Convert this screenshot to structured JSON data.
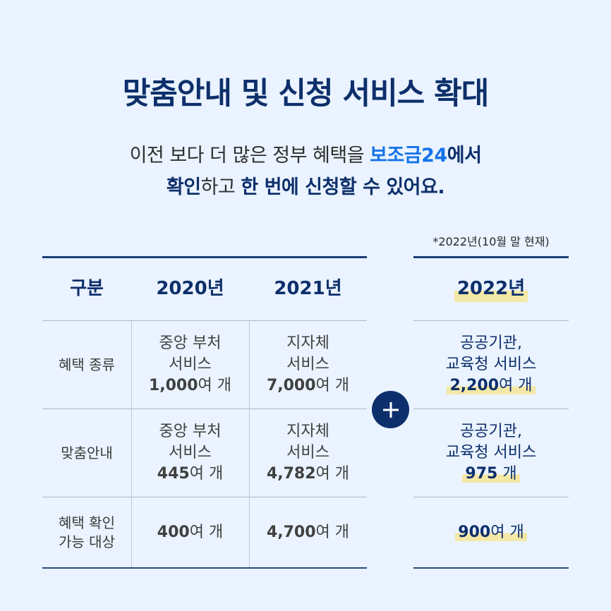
{
  "title": "맞춤안내 및 신청 서비스 확대",
  "subtitle": {
    "line1_pre": "이전 보다 더 많은 정부 혜택을 ",
    "line1_highlight": "보조금24",
    "line1_post": "에서",
    "line2_bold1": "확인",
    "line2_mid": "하고 ",
    "line2_bold2": "한 번에 신청할 수 있어요."
  },
  "note": "*2022년(10월 말 현재)",
  "table": {
    "headers": {
      "category": "구분",
      "y2020": "2020년",
      "y2021": "2021년",
      "y2022": "2022년"
    },
    "rows": [
      {
        "label": "혜택 종류",
        "y2020": [
          "중앙 부처",
          "서비스",
          "1,000",
          "여 개"
        ],
        "y2021": [
          "지자체",
          "서비스",
          "7,000",
          "여 개"
        ],
        "y2022": [
          "공공기관,",
          "교육청 서비스",
          "2,200",
          "여 개"
        ]
      },
      {
        "label": "맞춤안내",
        "y2020": [
          "중앙 부처",
          "서비스",
          "445",
          "여 개"
        ],
        "y2021": [
          "지자체",
          "서비스",
          "4,782",
          "여 개"
        ],
        "y2022": [
          "공공기관,",
          "교육청 서비스",
          "975",
          " 개"
        ]
      },
      {
        "label1": "혜택 확인",
        "label2": "가능 대상",
        "y2020": [
          "400",
          "여 개"
        ],
        "y2021": [
          "4,700",
          "여 개"
        ],
        "y2022": [
          "900",
          "여 개"
        ]
      }
    ]
  },
  "plus_icon": "plus-icon",
  "colors": {
    "navy": "#0d2f6b",
    "accent_blue": "#1673e8",
    "highlight": "#f4e8a6",
    "background": "#eaf3ff"
  }
}
